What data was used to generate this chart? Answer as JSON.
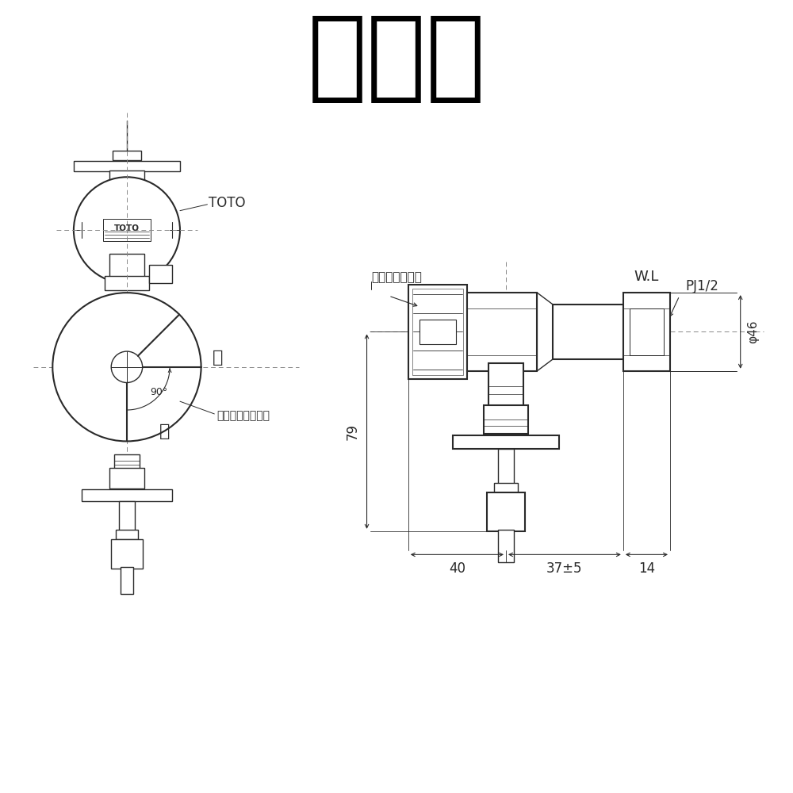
{
  "title": "尺寸圖",
  "bg_color": "#ffffff",
  "lc": "#2a2a2a",
  "lc_dim": "#2a2a2a",
  "annotations": {
    "TOTO_label": "TOTO",
    "pale_white": "ペールホワイト",
    "PJ12": "PJ1/2",
    "WL": "W.L",
    "open1": "開",
    "open2": "開",
    "handle": "ハンドル回転角度",
    "angle": "90°",
    "dim_79": "79",
    "dim_40": "40",
    "dim_37": "37±5",
    "dim_14": "14",
    "dim_phi46": "φ46"
  }
}
